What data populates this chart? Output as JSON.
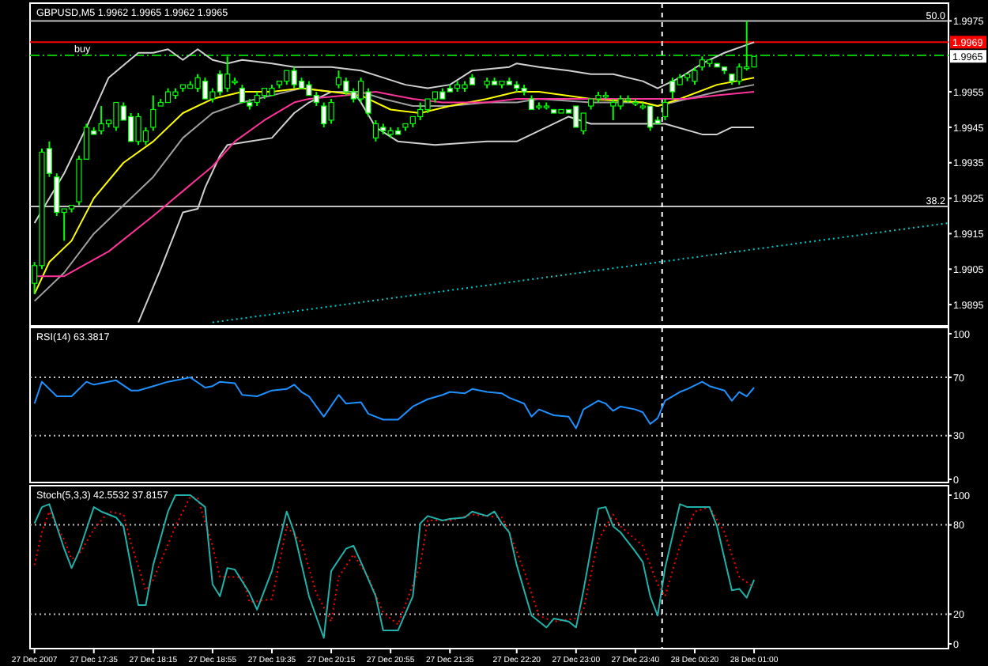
{
  "chart_data": [
    {
      "type": "candlestick",
      "title": "GBPUSD,M5 1.9962 1.9965 1.9962 1.9965",
      "color": "#00ff00",
      "tick_labels": "y",
      "x": [
        "2007-12-27T16:55",
        "2007-12-27T17:00",
        "2007-12-27T17:05",
        "2007-12-27T17:10",
        "2007-12-27T17:15",
        "2007-12-27T17:20",
        "2007-12-27T17:25",
        "2007-12-27T17:30",
        "2007-12-27T17:35",
        "2007-12-27T17:40",
        "2007-12-27T17:45",
        "2007-12-27T17:50",
        "2007-12-27T17:55",
        "2007-12-27T18:00",
        "2007-12-27T18:05",
        "2007-12-27T18:10",
        "2007-12-27T18:15",
        "2007-12-27T18:20",
        "2007-12-27T18:25",
        "2007-12-27T18:30",
        "2007-12-27T18:35",
        "2007-12-27T18:40",
        "2007-12-27T18:45",
        "2007-12-27T18:50",
        "2007-12-27T18:55",
        "2007-12-27T19:00",
        "2007-12-27T19:05",
        "2007-12-27T19:10",
        "2007-12-27T19:15",
        "2007-12-27T19:20",
        "2007-12-27T19:25",
        "2007-12-27T19:30",
        "2007-12-27T19:35",
        "2007-12-27T19:40",
        "2007-12-27T19:45",
        "2007-12-27T19:50",
        "2007-12-27T19:55",
        "2007-12-27T20:00",
        "2007-12-27T20:05",
        "2007-12-27T20:10",
        "2007-12-27T20:15",
        "2007-12-27T20:20",
        "2007-12-27T20:25",
        "2007-12-27T20:30",
        "2007-12-27T20:35",
        "2007-12-27T20:40",
        "2007-12-27T20:45",
        "2007-12-27T20:50",
        "2007-12-27T20:55",
        "2007-12-27T21:00",
        "2007-12-27T21:05",
        "2007-12-27T21:10",
        "2007-12-27T21:15",
        "2007-12-27T21:20",
        "2007-12-27T21:25",
        "2007-12-27T21:30",
        "2007-12-27T21:35",
        "2007-12-27T21:40",
        "2007-12-27T21:45",
        "2007-12-27T21:50",
        "2007-12-27T22:00",
        "2007-12-27T22:05",
        "2007-12-27T22:10",
        "2007-12-27T22:15",
        "2007-12-27T22:20",
        "2007-12-27T22:25",
        "2007-12-27T22:30",
        "2007-12-27T22:35",
        "2007-12-27T22:40",
        "2007-12-27T22:45",
        "2007-12-27T22:50",
        "2007-12-27T22:55",
        "2007-12-27T23:00",
        "2007-12-27T23:05",
        "2007-12-27T23:10",
        "2007-12-27T23:15",
        "2007-12-27T23:20",
        "2007-12-27T23:25",
        "2007-12-27T23:30",
        "2007-12-27T23:35",
        "2007-12-27T23:40",
        "2007-12-27T23:45",
        "2007-12-27T23:50",
        "2007-12-27T23:55",
        "2007-12-28T00:00",
        "2007-12-28T00:05",
        "2007-12-28T00:10",
        "2007-12-28T00:15",
        "2007-12-28T00:20",
        "2007-12-28T00:25",
        "2007-12-28T00:30",
        "2007-12-28T00:35",
        "2007-12-28T00:40",
        "2007-12-28T00:45",
        "2007-12-28T00:50",
        "2007-12-28T00:55",
        "2007-12-28T01:00"
      ],
      "ohlc": [
        [
          1.9901,
          1.9907,
          1.9898,
          1.9906
        ],
        [
          1.9906,
          1.9939,
          1.9905,
          1.9938
        ],
        [
          1.9939,
          1.9941,
          1.9931,
          1.9932
        ],
        [
          1.9931,
          1.9932,
          1.992,
          1.9921
        ],
        [
          1.9921,
          1.9922,
          1.9913,
          1.9922
        ],
        [
          1.9922,
          1.9923,
          1.9921,
          1.9923
        ],
        [
          1.9924,
          1.9937,
          1.9923,
          1.9936
        ],
        [
          1.9936,
          1.9946,
          1.9936,
          1.9945
        ],
        [
          1.9944,
          1.9945,
          1.9943,
          1.9943
        ],
        [
          1.9944,
          1.9951,
          1.9943,
          1.9946
        ],
        [
          1.9946,
          1.9947,
          1.9945,
          1.9947
        ],
        [
          1.9945,
          1.9952,
          1.9944,
          1.9952
        ],
        [
          1.9951,
          1.9952,
          1.9947,
          1.9947
        ],
        [
          1.9948,
          1.9949,
          1.9941,
          1.9941
        ],
        [
          1.9941,
          1.9949,
          1.994,
          1.9948
        ],
        [
          1.9941,
          1.9945,
          1.994,
          1.9944
        ],
        [
          1.9945,
          1.9954,
          1.9944,
          1.995
        ],
        [
          1.9951,
          1.9953,
          1.9951,
          1.9952
        ],
        [
          1.9952,
          1.9956,
          1.9952,
          1.9955
        ],
        [
          1.9954,
          1.9956,
          1.9953,
          1.9955
        ],
        [
          1.9956,
          1.9957,
          1.9955,
          1.9957
        ],
        [
          1.9956,
          1.9958,
          1.9956,
          1.9957
        ],
        [
          1.9956,
          1.996,
          1.9955,
          1.9959
        ],
        [
          1.9958,
          1.9959,
          1.9953,
          1.9953
        ],
        [
          1.9953,
          1.9956,
          1.9952,
          1.9955
        ],
        [
          1.996,
          1.9961,
          1.9954,
          1.9955
        ],
        [
          1.9956,
          1.9965,
          1.9955,
          1.996
        ],
        [
          1.9958,
          1.9959,
          1.9957,
          1.9958
        ],
        [
          1.9956,
          1.9957,
          1.9952,
          1.9952
        ],
        [
          1.9952,
          1.9953,
          1.995,
          1.9951
        ],
        [
          1.9952,
          1.9955,
          1.9951,
          1.9954
        ],
        [
          1.9954,
          1.9956,
          1.9953,
          1.9956
        ],
        [
          1.9954,
          1.9957,
          1.9954,
          1.9956
        ],
        [
          1.9957,
          1.9958,
          1.9956,
          1.9958
        ],
        [
          1.9958,
          1.9961,
          1.9957,
          1.9961
        ],
        [
          1.9961,
          1.9962,
          1.9956,
          1.9957
        ],
        [
          1.9958,
          1.9959,
          1.9956,
          1.9956
        ],
        [
          1.9957,
          1.9958,
          1.9954,
          1.9954
        ],
        [
          1.9954,
          1.9955,
          1.9951,
          1.9952
        ],
        [
          1.9951,
          1.9952,
          1.9945,
          1.9946
        ],
        [
          1.9947,
          1.9953,
          1.9946,
          1.9952
        ],
        [
          1.9957,
          1.9961,
          1.9956,
          1.9959
        ],
        [
          1.9958,
          1.9959,
          1.9954,
          1.9955
        ],
        [
          1.9955,
          1.9956,
          1.9952,
          1.9953
        ],
        [
          1.9953,
          1.9959,
          1.9952,
          1.9958
        ],
        [
          1.9955,
          1.9956,
          1.9948,
          1.9949
        ],
        [
          1.9942,
          1.9947,
          1.9941,
          1.9946
        ],
        [
          1.9945,
          1.9946,
          1.9943,
          1.9944
        ],
        [
          1.9943,
          1.9945,
          1.9942,
          1.9944
        ],
        [
          1.9944,
          1.9945,
          1.9943,
          1.9943
        ],
        [
          1.9945,
          1.9946,
          1.9944,
          1.9946
        ],
        [
          1.9946,
          1.9948,
          1.9945,
          1.9948
        ],
        [
          1.9948,
          1.9952,
          1.9947,
          1.995
        ],
        [
          1.995,
          1.9953,
          1.9949,
          1.9953
        ],
        [
          1.9953,
          1.9955,
          1.9952,
          1.9955
        ],
        [
          1.9955,
          1.9956,
          1.9953,
          1.9953
        ],
        [
          1.9956,
          1.9957,
          1.9955,
          1.9955
        ],
        [
          1.9956,
          1.9958,
          1.9955,
          1.9957
        ],
        [
          1.9956,
          1.9958,
          1.9955,
          1.9957
        ],
        [
          1.9959,
          1.996,
          1.9957,
          1.9957
        ],
        [
          1.9957,
          1.9959,
          1.9956,
          1.9958
        ],
        [
          1.9958,
          1.9959,
          1.9957,
          1.9957
        ],
        [
          1.9957,
          1.9958,
          1.9956,
          1.9958
        ],
        [
          1.9958,
          1.9959,
          1.9957,
          1.9957
        ],
        [
          1.9957,
          1.9958,
          1.9955,
          1.9956
        ],
        [
          1.9956,
          1.9957,
          1.9954,
          1.9955
        ],
        [
          1.9953,
          1.9954,
          1.995,
          1.995
        ],
        [
          1.9951,
          1.9952,
          1.995,
          1.9951
        ],
        [
          1.9951,
          1.9952,
          1.995,
          1.9951
        ],
        [
          1.995,
          1.995,
          1.9949,
          1.9949
        ],
        [
          1.9949,
          1.995,
          1.9949,
          1.995
        ],
        [
          1.995,
          1.995,
          1.9949,
          1.9949
        ],
        [
          1.9951,
          1.9951,
          1.9945,
          1.9945
        ],
        [
          1.9944,
          1.9949,
          1.9943,
          1.9949
        ],
        [
          1.9951,
          1.9953,
          1.995,
          1.9953
        ],
        [
          1.9953,
          1.9955,
          1.9952,
          1.9954
        ],
        [
          1.9954,
          1.9955,
          1.9953,
          1.9954
        ],
        [
          1.9951,
          1.9953,
          1.9947,
          1.9952
        ],
        [
          1.9951,
          1.9954,
          1.995,
          1.9953
        ],
        [
          1.9953,
          1.9954,
          1.9952,
          1.9953
        ],
        [
          1.9952,
          1.9953,
          1.9951,
          1.9952
        ],
        [
          1.9951,
          1.9952,
          1.995,
          1.9951
        ],
        [
          1.9951,
          1.9951,
          1.9944,
          1.9945
        ],
        [
          1.9947,
          1.9948,
          1.9946,
          1.9946
        ],
        [
          1.9948,
          1.9953,
          1.9947,
          1.9952
        ],
        [
          1.9958,
          1.9959,
          1.9953,
          1.9955
        ],
        [
          1.9957,
          1.996,
          1.9957,
          1.9959
        ],
        [
          1.9959,
          1.996,
          1.9958,
          1.996
        ],
        [
          1.9958,
          1.9962,
          1.9957,
          1.9961
        ],
        [
          1.9962,
          1.9965,
          1.9961,
          1.9964
        ],
        [
          1.9963,
          1.9964,
          1.9962,
          1.9964
        ],
        [
          1.9963,
          1.9963,
          1.9962,
          1.9962
        ],
        [
          1.9962,
          1.9962,
          1.996,
          1.9961
        ],
        [
          1.996,
          1.996,
          1.9957,
          1.9958
        ],
        [
          1.9958,
          1.9963,
          1.9957,
          1.9962
        ],
        [
          1.9962,
          1.9975,
          1.9961,
          1.9962
        ],
        [
          1.9962,
          1.9965,
          1.9962,
          1.9965
        ]
      ],
      "series": [
        {
          "type": "line",
          "color": "#d0d0d0",
          "x": [
            "2007-12-27T16:55",
            "2007-12-27T17:15",
            "2007-12-27T17:30",
            "2007-12-27T17:45",
            "2007-12-27T18:05",
            "2007-12-27T18:15",
            "2007-12-27T18:25",
            "2007-12-27T18:35",
            "2007-12-27T18:45",
            "2007-12-27T18:55",
            "2007-12-27T19:05",
            "2007-12-27T19:15",
            "2007-12-27T19:35",
            "2007-12-27T19:50",
            "2007-12-27T20:00",
            "2007-12-27T20:15",
            "2007-12-27T20:35",
            "2007-12-27T20:50",
            "2007-12-27T21:05",
            "2007-12-27T21:20",
            "2007-12-27T21:35",
            "2007-12-27T21:50",
            "2007-12-27T22:15",
            "2007-12-27T22:20",
            "2007-12-27T22:35",
            "2007-12-27T22:55",
            "2007-12-27T23:10",
            "2007-12-27T23:25",
            "2007-12-27T23:45",
            "2007-12-27T23:55",
            "2007-12-28T00:10",
            "2007-12-28T00:25",
            "2007-12-28T00:40",
            "2007-12-28T01:00"
          ],
          "values": [
            1.9918,
            1.9932,
            1.9945,
            1.9959,
            1.9966,
            1.9966,
            1.9967,
            1.9964,
            1.9967,
            1.9964,
            1.9963,
            1.9964,
            1.9963,
            1.9962,
            1.9962,
            1.9962,
            1.9961,
            1.9959,
            1.9957,
            1.9956,
            1.9957,
            1.9961,
            1.9962,
            1.9963,
            1.9962,
            1.9961,
            1.996,
            1.996,
            1.9958,
            1.9956,
            1.9959,
            1.9963,
            1.9966,
            1.9969
          ]
        },
        {
          "type": "line",
          "color": "#d0d0d0",
          "x": [
            "2007-12-27T18:05",
            "2007-12-27T18:20",
            "2007-12-27T18:35",
            "2007-12-27T18:45",
            "2007-12-27T18:50",
            "2007-12-27T19:00",
            "2007-12-27T19:05",
            "2007-12-27T19:20",
            "2007-12-27T19:35",
            "2007-12-27T19:50",
            "2007-12-27T20:00",
            "2007-12-27T20:15",
            "2007-12-27T20:30",
            "2007-12-27T20:35",
            "2007-12-27T20:45",
            "2007-12-27T21:00",
            "2007-12-27T21:25",
            "2007-12-27T22:00",
            "2007-12-27T22:20",
            "2007-12-27T22:35",
            "2007-12-27T22:55",
            "2007-12-27T23:10",
            "2007-12-27T23:45",
            "2007-12-28T00:00",
            "2007-12-28T00:25",
            "2007-12-28T00:35",
            "2007-12-28T00:45",
            "2007-12-28T01:00"
          ],
          "values": [
            1.989,
            1.9905,
            1.9921,
            1.9922,
            1.9928,
            1.9937,
            1.994,
            1.9941,
            1.9942,
            1.9949,
            1.9952,
            1.9955,
            1.9955,
            1.9952,
            1.9945,
            1.9941,
            1.994,
            1.9941,
            1.9941,
            1.9944,
            1.9948,
            1.9946,
            1.9946,
            1.9946,
            1.9943,
            1.9943,
            1.9945,
            1.9945
          ]
        },
        {
          "type": "line",
          "color": "#a0a0a0",
          "x": [
            "2007-12-27T16:55",
            "2007-12-27T17:15",
            "2007-12-27T17:35",
            "2007-12-27T17:55",
            "2007-12-27T18:15",
            "2007-12-27T18:35",
            "2007-12-27T18:55",
            "2007-12-27T19:15",
            "2007-12-27T19:35",
            "2007-12-27T19:55",
            "2007-12-27T20:15",
            "2007-12-27T20:35",
            "2007-12-27T20:50",
            "2007-12-27T21:10",
            "2007-12-27T21:35",
            "2007-12-27T22:00",
            "2007-12-27T22:20",
            "2007-12-27T22:35",
            "2007-12-27T23:10",
            "2007-12-27T23:45",
            "2007-12-27T23:55",
            "2007-12-28T00:15",
            "2007-12-28T00:35",
            "2007-12-28T01:00"
          ],
          "values": [
            1.9896,
            1.9904,
            1.9915,
            1.9923,
            1.9931,
            1.9942,
            1.9949,
            1.9952,
            1.9954,
            1.9956,
            1.9955,
            1.9955,
            1.9953,
            1.9951,
            1.9951,
            1.9952,
            1.9952,
            1.9953,
            1.9952,
            1.9952,
            1.9951,
            1.9953,
            1.9955,
            1.9957
          ]
        },
        {
          "type": "line",
          "color": "#ffff00",
          "x": [
            "2007-12-27T16:55",
            "2007-12-27T17:05",
            "2007-12-27T17:20",
            "2007-12-27T17:35",
            "2007-12-27T17:55",
            "2007-12-27T18:15",
            "2007-12-27T18:35",
            "2007-12-27T18:55",
            "2007-12-27T19:15",
            "2007-12-27T19:35",
            "2007-12-27T19:55",
            "2007-12-27T20:15",
            "2007-12-27T20:35",
            "2007-12-27T20:55",
            "2007-12-27T21:15",
            "2007-12-27T21:35",
            "2007-12-27T22:00",
            "2007-12-27T22:20",
            "2007-12-27T22:35",
            "2007-12-27T23:10",
            "2007-12-27T23:45",
            "2007-12-27T23:55",
            "2007-12-28T00:10",
            "2007-12-28T00:35",
            "2007-12-28T01:00"
          ],
          "values": [
            1.9898,
            1.9907,
            1.9913,
            1.9925,
            1.9935,
            1.9941,
            1.9949,
            1.9953,
            1.9955,
            1.9955,
            1.9956,
            1.9955,
            1.9954,
            1.995,
            1.9949,
            1.9951,
            1.9953,
            1.9955,
            1.9955,
            1.9953,
            1.9952,
            1.9951,
            1.9953,
            1.9957,
            1.9959
          ]
        },
        {
          "type": "line",
          "color": "#ff3399",
          "x": [
            "2007-12-27T16:55",
            "2007-12-27T17:15",
            "2007-12-27T17:45",
            "2007-12-27T18:15",
            "2007-12-27T18:35",
            "2007-12-27T18:55",
            "2007-12-27T19:10",
            "2007-12-27T19:30",
            "2007-12-27T19:50",
            "2007-12-27T20:00",
            "2007-12-27T20:25",
            "2007-12-27T20:45",
            "2007-12-27T21:10",
            "2007-12-27T21:30",
            "2007-12-27T22:00",
            "2007-12-27T22:20",
            "2007-12-27T22:35",
            "2007-12-27T23:10",
            "2007-12-27T23:45",
            "2007-12-28T00:15",
            "2007-12-28T00:35",
            "2007-12-28T01:00"
          ],
          "values": [
            1.9903,
            1.9903,
            1.991,
            1.992,
            1.9927,
            1.9934,
            1.9941,
            1.9947,
            1.9952,
            1.9953,
            1.9954,
            1.9955,
            1.9953,
            1.9952,
            1.9952,
            1.9953,
            1.9953,
            1.9953,
            1.9953,
            1.9953,
            1.9954,
            1.9955
          ]
        },
        {
          "type": "line",
          "color": "#00cccc",
          "line_style": "dotted",
          "x": [
            "2007-12-27T18:55",
            "2007-12-28T03:11"
          ],
          "values": [
            1.989,
            1.9918
          ]
        }
      ],
      "xlim": [
        "2007-12-27T16:52",
        "2007-12-28T03:11"
      ],
      "ylim": [
        1.9889,
        1.998
      ],
      "yticks": [
        1.9975,
        1.9955,
        1.9945,
        1.9935,
        1.9925,
        1.9915,
        1.9905,
        1.9895
      ],
      "ref_lines": [
        {
          "axis": "y",
          "value": 1.9975,
          "color": "#c0c0c0"
        },
        {
          "axis": "y",
          "value": 1.99227,
          "color": "#c0c0c0"
        },
        {
          "axis": "y",
          "value": 1.9969,
          "color": "#ff0000",
          "label": "1.9969"
        },
        {
          "axis": "y",
          "value": 1.99653,
          "color": "#00c000",
          "line_style": "dashed",
          "label": "buy"
        },
        {
          "axis": "x",
          "value": "2007-12-27T23:58",
          "color": "#ffffff",
          "line_style": "dashed"
        }
      ],
      "annotations": [
        "50.0",
        "38.2",
        "1.9965"
      ]
    },
    {
      "type": "line",
      "title": "RSI(14) 63.3817",
      "tick_labels": "y",
      "xlim": [
        "2007-12-27T16:52",
        "2007-12-28T03:11"
      ],
      "ylim": [
        -2.2,
        104.3
      ],
      "yticks": [
        100,
        70,
        30,
        0
      ],
      "series": [
        {
          "color": "#1e90ff",
          "x": [
            "2007-12-27T16:55",
            "2007-12-27T17:00",
            "2007-12-27T17:10",
            "2007-12-27T17:20",
            "2007-12-27T17:30",
            "2007-12-27T17:35",
            "2007-12-27T17:50",
            "2007-12-27T18:00",
            "2007-12-27T18:05",
            "2007-12-27T18:15",
            "2007-12-27T18:25",
            "2007-12-27T18:40",
            "2007-12-27T18:50",
            "2007-12-27T18:55",
            "2007-12-27T19:00",
            "2007-12-27T19:10",
            "2007-12-27T19:15",
            "2007-12-27T19:25",
            "2007-12-27T19:35",
            "2007-12-27T19:45",
            "2007-12-27T19:50",
            "2007-12-27T19:55",
            "2007-12-27T20:00",
            "2007-12-27T20:10",
            "2007-12-27T20:20",
            "2007-12-27T20:25",
            "2007-12-27T20:35",
            "2007-12-27T20:40",
            "2007-12-27T20:50",
            "2007-12-27T21:00",
            "2007-12-27T21:10",
            "2007-12-27T21:20",
            "2007-12-27T21:30",
            "2007-12-27T21:35",
            "2007-12-27T21:45",
            "2007-12-27T21:50",
            "2007-12-27T22:00",
            "2007-12-27T22:10",
            "2007-12-27T22:15",
            "2007-12-27T22:25",
            "2007-12-27T22:30",
            "2007-12-27T22:35",
            "2007-12-27T22:45",
            "2007-12-27T22:55",
            "2007-12-27T23:00",
            "2007-12-27T23:05",
            "2007-12-27T23:15",
            "2007-12-27T23:20",
            "2007-12-27T23:25",
            "2007-12-27T23:30",
            "2007-12-27T23:40",
            "2007-12-27T23:45",
            "2007-12-27T23:50",
            "2007-12-27T23:55",
            "2007-12-28T00:00",
            "2007-12-28T00:10",
            "2007-12-28T00:15",
            "2007-12-28T00:25",
            "2007-12-28T00:30",
            "2007-12-28T00:40",
            "2007-12-28T00:45",
            "2007-12-28T00:50",
            "2007-12-28T00:55",
            "2007-12-28T01:00"
          ],
          "values": [
            52,
            67,
            57,
            57,
            67,
            65,
            68,
            61,
            61,
            64,
            67,
            70,
            63,
            64,
            67,
            66,
            58,
            57,
            61,
            62,
            65,
            60,
            57,
            43,
            58,
            52,
            53,
            45,
            41,
            41,
            50,
            55,
            58,
            60,
            59,
            62,
            60,
            59,
            56,
            52,
            43,
            48,
            44,
            43,
            35,
            48,
            54,
            52,
            47,
            50,
            48,
            46,
            38,
            42,
            54,
            60,
            62,
            67,
            64,
            61,
            54,
            60,
            57,
            63
          ]
        }
      ],
      "ref_lines": [
        {
          "axis": "y",
          "value": 70,
          "color": "#c0c0c0",
          "line_style": "dotted"
        },
        {
          "axis": "y",
          "value": 30,
          "color": "#c0c0c0",
          "line_style": "dotted"
        },
        {
          "axis": "x",
          "value": "2007-12-27T23:58",
          "color": "#ffffff",
          "line_style": "dashed"
        }
      ]
    },
    {
      "type": "line",
      "title": "Stoch(5,3,3) 42.5532 37.8157",
      "xlim": [
        "2007-12-27T16:52",
        "2007-12-28T03:11"
      ],
      "ylim": [
        -3.2,
        106.4
      ],
      "yticks": [
        100,
        80,
        20,
        0
      ],
      "xticks": [
        {
          "value": "2007-12-27T16:55",
          "label": "27 Dec 2007"
        },
        {
          "value": "2007-12-27T17:35",
          "label": "27 Dec 17:35"
        },
        {
          "value": "2007-12-27T18:15",
          "label": "27 Dec 18:15"
        },
        {
          "value": "2007-12-27T18:55",
          "label": "27 Dec 18:55"
        },
        {
          "value": "2007-12-27T19:35",
          "label": "27 Dec 19:35"
        },
        {
          "value": "2007-12-27T20:15",
          "label": "27 Dec 20:15"
        },
        {
          "value": "2007-12-27T20:55",
          "label": "27 Dec 20:55"
        },
        {
          "value": "2007-12-27T21:35",
          "label": "27 Dec 21:35"
        },
        {
          "value": "2007-12-27T22:20",
          "label": "27 Dec 22:20"
        },
        {
          "value": "2007-12-27T23:00",
          "label": "27 Dec 23:00"
        },
        {
          "value": "2007-12-27T23:40",
          "label": "27 Dec 23:40"
        },
        {
          "value": "2007-12-28T00:20",
          "label": "28 Dec 00:20"
        },
        {
          "value": "2007-12-28T01:00",
          "label": "28 Dec 01:00"
        }
      ],
      "series": [
        {
          "color": "#20b2aa",
          "x": [
            "2007-12-27T16:55",
            "2007-12-27T17:00",
            "2007-12-27T17:05",
            "2007-12-27T17:15",
            "2007-12-27T17:20",
            "2007-12-27T17:25",
            "2007-12-27T17:35",
            "2007-12-27T17:40",
            "2007-12-27T17:50",
            "2007-12-27T17:55",
            "2007-12-27T18:05",
            "2007-12-27T18:10",
            "2007-12-27T18:15",
            "2007-12-27T18:25",
            "2007-12-27T18:30",
            "2007-12-27T18:40",
            "2007-12-27T18:50",
            "2007-12-27T18:55",
            "2007-12-27T19:00",
            "2007-12-27T19:05",
            "2007-12-27T19:10",
            "2007-12-27T19:20",
            "2007-12-27T19:25",
            "2007-12-27T19:35",
            "2007-12-27T19:45",
            "2007-12-27T19:50",
            "2007-12-27T20:00",
            "2007-12-27T20:10",
            "2007-12-27T20:15",
            "2007-12-27T20:25",
            "2007-12-27T20:30",
            "2007-12-27T20:35",
            "2007-12-27T20:45",
            "2007-12-27T20:50",
            "2007-12-27T21:00",
            "2007-12-27T21:10",
            "2007-12-27T21:15",
            "2007-12-27T21:20",
            "2007-12-27T21:30",
            "2007-12-27T21:35",
            "2007-12-27T21:45",
            "2007-12-27T21:50",
            "2007-12-27T22:00",
            "2007-12-27T22:05",
            "2007-12-27T22:10",
            "2007-12-27T22:15",
            "2007-12-27T22:20",
            "2007-12-27T22:30",
            "2007-12-27T22:40",
            "2007-12-27T22:45",
            "2007-12-27T22:55",
            "2007-12-27T23:00",
            "2007-12-27T23:05",
            "2007-12-27T23:15",
            "2007-12-27T23:20",
            "2007-12-27T23:25",
            "2007-12-27T23:30",
            "2007-12-27T23:40",
            "2007-12-27T23:45",
            "2007-12-27T23:50",
            "2007-12-27T23:55",
            "2007-12-28T00:00",
            "2007-12-28T00:10",
            "2007-12-28T00:15",
            "2007-12-28T00:30",
            "2007-12-28T00:35",
            "2007-12-28T00:45",
            "2007-12-28T00:50",
            "2007-12-28T00:55",
            "2007-12-28T01:00"
          ],
          "values": [
            81,
            92,
            94,
            64,
            51,
            62,
            92,
            89,
            85,
            79,
            26,
            26,
            53,
            89,
            100,
            100,
            92,
            40,
            32,
            51,
            50,
            34,
            23,
            49,
            89,
            75,
            32,
            4,
            49,
            64,
            66,
            55,
            32,
            9,
            9,
            32,
            81,
            86,
            83,
            84,
            85,
            89,
            86,
            89,
            81,
            75,
            53,
            19,
            11,
            17,
            15,
            11,
            36,
            91,
            92,
            79,
            75,
            62,
            55,
            32,
            19,
            51,
            94,
            92,
            92,
            79,
            36,
            37,
            31,
            43
          ]
        },
        {
          "color": "#ff0000",
          "line_style": "dotted",
          "x": [
            "2007-12-27T16:55",
            "2007-12-27T17:00",
            "2007-12-27T17:05",
            "2007-12-27T17:15",
            "2007-12-27T17:20",
            "2007-12-27T17:25",
            "2007-12-27T17:35",
            "2007-12-27T17:45",
            "2007-12-27T17:55",
            "2007-12-27T18:00",
            "2007-12-27T18:10",
            "2007-12-27T18:15",
            "2007-12-27T18:30",
            "2007-12-27T18:40",
            "2007-12-27T18:45",
            "2007-12-27T18:55",
            "2007-12-27T19:00",
            "2007-12-27T19:15",
            "2007-12-27T19:20",
            "2007-12-27T19:35",
            "2007-12-27T19:45",
            "2007-12-27T19:55",
            "2007-12-27T20:05",
            "2007-12-27T20:15",
            "2007-12-27T20:20",
            "2007-12-27T20:30",
            "2007-12-27T20:40",
            "2007-12-27T20:50",
            "2007-12-27T21:00",
            "2007-12-27T21:15",
            "2007-12-27T21:20",
            "2007-12-27T21:35",
            "2007-12-27T21:50",
            "2007-12-27T22:10",
            "2007-12-27T22:15",
            "2007-12-27T22:25",
            "2007-12-27T22:35",
            "2007-12-27T22:45",
            "2007-12-27T23:00",
            "2007-12-27T23:05",
            "2007-12-27T23:15",
            "2007-12-27T23:25",
            "2007-12-27T23:30",
            "2007-12-27T23:45",
            "2007-12-27T23:55",
            "2007-12-28T00:00",
            "2007-12-28T00:10",
            "2007-12-28T00:20",
            "2007-12-28T00:30",
            "2007-12-28T00:40",
            "2007-12-28T00:50",
            "2007-12-28T01:00"
          ],
          "values": [
            53,
            75,
            89,
            70,
            57,
            60,
            77,
            89,
            87,
            68,
            36,
            43,
            79,
            99,
            98,
            66,
            45,
            45,
            28,
            30,
            79,
            68,
            34,
            15,
            45,
            60,
            45,
            21,
            13,
            53,
            83,
            83,
            87,
            85,
            75,
            49,
            19,
            15,
            17,
            23,
            70,
            87,
            79,
            66,
            40,
            32,
            66,
            89,
            92,
            75,
            45,
            38
          ]
        }
      ],
      "ref_lines": [
        {
          "axis": "y",
          "value": 80,
          "color": "#c0c0c0",
          "line_style": "dotted"
        },
        {
          "axis": "y",
          "value": 20,
          "color": "#c0c0c0",
          "line_style": "dotted"
        },
        {
          "axis": "x",
          "value": "2007-12-27T23:58",
          "color": "#ffffff",
          "line_style": "dashed"
        }
      ]
    }
  ]
}
